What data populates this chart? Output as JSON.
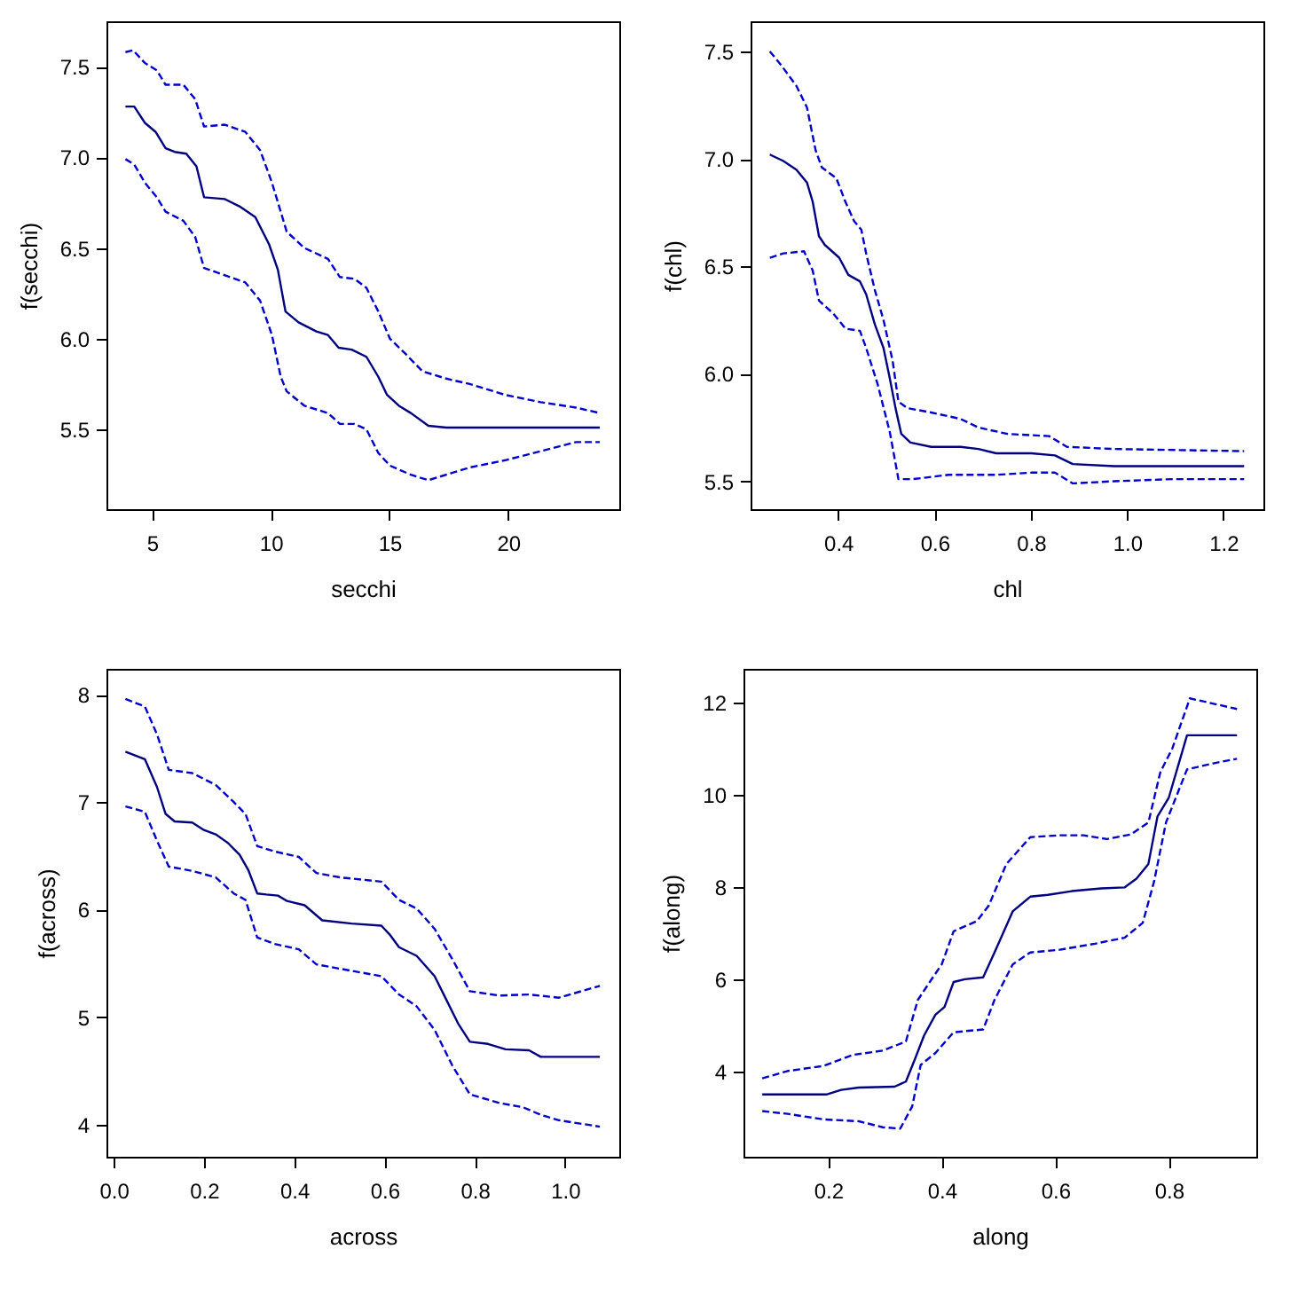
{
  "chart_data": [
    {
      "type": "line",
      "xlabel": "secchi",
      "ylabel": "f(secchi)",
      "xlim": [
        3.08,
        24.68
      ],
      "ylim": [
        5.06,
        7.75
      ],
      "xticks": [
        5,
        10,
        15,
        20
      ],
      "yticks": [
        {
          "value": 5.5,
          "label": "5.5"
        },
        {
          "value": 6,
          "label": "6.0"
        },
        {
          "value": 6.5,
          "label": "6.5"
        },
        {
          "value": 7,
          "label": "7.0"
        },
        {
          "value": 7.5,
          "label": "7.5"
        }
      ],
      "series": [
        {
          "color": "#000080",
          "line_style": "solid",
          "x": [
            3.88,
            4.25,
            4.7,
            5.15,
            5.57,
            5.95,
            6.44,
            6.87,
            7.19,
            8.06,
            8.68,
            9.35,
            9.93,
            10.3,
            10.62,
            11.17,
            11.92,
            12.41,
            12.86,
            13.41,
            14.03,
            14.53,
            14.9,
            15.4,
            15.9,
            16.64,
            17.39,
            23.86
          ],
          "values": [
            7.28,
            7.28,
            7.19,
            7.14,
            7.05,
            7.03,
            7.02,
            6.95,
            6.78,
            6.77,
            6.73,
            6.67,
            6.52,
            6.38,
            6.15,
            6.09,
            6.04,
            6.02,
            5.95,
            5.94,
            5.9,
            5.79,
            5.69,
            5.63,
            5.59,
            5.52,
            5.51,
            5.51
          ]
        },
        {
          "color": "#0000cc",
          "line_style": "dashed",
          "x": [
            3.88,
            4.2,
            4.7,
            5.2,
            5.57,
            6.32,
            6.82,
            7.19,
            8.06,
            8.93,
            9.55,
            10.05,
            10.42,
            10.67,
            11.42,
            12.41,
            12.91,
            13.53,
            14.03,
            14.53,
            15.02,
            15.65,
            16.39,
            17.39,
            18.38,
            19.88,
            21.37,
            22.86,
            23.86
          ],
          "values": [
            7.58,
            7.59,
            7.52,
            7.48,
            7.4,
            7.4,
            7.32,
            7.17,
            7.18,
            7.14,
            7.04,
            6.86,
            6.7,
            6.59,
            6.5,
            6.44,
            6.34,
            6.33,
            6.28,
            6.15,
            6.0,
            5.92,
            5.82,
            5.78,
            5.75,
            5.69,
            5.65,
            5.62,
            5.59
          ]
        },
        {
          "color": "#0000cc",
          "line_style": "dashed",
          "x": [
            3.88,
            4.25,
            4.7,
            5.2,
            5.57,
            6.32,
            6.82,
            7.19,
            8.06,
            8.93,
            9.55,
            10.05,
            10.42,
            10.67,
            11.42,
            12.41,
            12.91,
            13.53,
            14.03,
            14.53,
            15.02,
            15.9,
            16.64,
            17.39,
            18.38,
            19.88,
            21.37,
            22.86,
            23.86
          ],
          "values": [
            6.99,
            6.96,
            6.86,
            6.78,
            6.7,
            6.65,
            6.56,
            6.39,
            6.35,
            6.31,
            6.21,
            6.02,
            5.79,
            5.71,
            5.63,
            5.59,
            5.53,
            5.53,
            5.5,
            5.37,
            5.3,
            5.25,
            5.22,
            5.25,
            5.29,
            5.33,
            5.38,
            5.43,
            5.43
          ]
        }
      ]
    },
    {
      "type": "line",
      "xlabel": "chl",
      "ylabel": "f(chl)",
      "xlim": [
        0.218,
        1.283
      ],
      "ylim": [
        5.37,
        7.64
      ],
      "xticks": [
        {
          "value": 0.4,
          "label": "0.4"
        },
        {
          "value": 0.6,
          "label": "0.6"
        },
        {
          "value": 0.8,
          "label": "0.8"
        },
        {
          "value": 1,
          "label": "1.0"
        },
        {
          "value": 1.2,
          "label": "1.2"
        }
      ],
      "yticks": [
        {
          "value": 5.5,
          "label": "5.5"
        },
        {
          "value": 6,
          "label": "6.0"
        },
        {
          "value": 6.5,
          "label": "6.5"
        },
        {
          "value": 7,
          "label": "7.0"
        },
        {
          "value": 7.5,
          "label": "7.5"
        }
      ],
      "series": [
        {
          "color": "#000080",
          "line_style": "solid",
          "x": [
            0.258,
            0.286,
            0.313,
            0.335,
            0.347,
            0.36,
            0.372,
            0.402,
            0.421,
            0.445,
            0.458,
            0.476,
            0.494,
            0.507,
            0.519,
            0.531,
            0.55,
            0.593,
            0.654,
            0.691,
            0.728,
            0.801,
            0.85,
            0.887,
            0.973,
            1.243
          ],
          "values": [
            7.02,
            6.99,
            6.95,
            6.89,
            6.8,
            6.64,
            6.6,
            6.54,
            6.46,
            6.43,
            6.37,
            6.23,
            6.12,
            5.98,
            5.84,
            5.72,
            5.68,
            5.66,
            5.66,
            5.65,
            5.63,
            5.63,
            5.62,
            5.58,
            5.57,
            5.57
          ]
        },
        {
          "color": "#0000cc",
          "line_style": "dashed",
          "x": [
            0.258,
            0.28,
            0.313,
            0.335,
            0.353,
            0.366,
            0.396,
            0.415,
            0.433,
            0.448,
            0.458,
            0.476,
            0.494,
            0.513,
            0.525,
            0.544,
            0.593,
            0.654,
            0.691,
            0.752,
            0.838,
            0.875,
            0.973,
            1.243
          ],
          "values": [
            7.5,
            7.44,
            7.34,
            7.24,
            7.04,
            6.96,
            6.91,
            6.8,
            6.71,
            6.67,
            6.56,
            6.39,
            6.25,
            6.06,
            5.87,
            5.84,
            5.82,
            5.79,
            5.75,
            5.72,
            5.71,
            5.66,
            5.65,
            5.64
          ]
        },
        {
          "color": "#0000cc",
          "line_style": "dashed",
          "x": [
            0.258,
            0.286,
            0.329,
            0.347,
            0.36,
            0.39,
            0.415,
            0.445,
            0.458,
            0.482,
            0.507,
            0.525,
            0.556,
            0.629,
            0.728,
            0.801,
            0.85,
            0.887,
            0.973,
            1.096,
            1.243
          ],
          "values": [
            6.54,
            6.56,
            6.57,
            6.48,
            6.34,
            6.28,
            6.21,
            6.2,
            6.12,
            5.95,
            5.73,
            5.51,
            5.51,
            5.53,
            5.53,
            5.54,
            5.54,
            5.49,
            5.5,
            5.51,
            5.51
          ]
        }
      ]
    },
    {
      "type": "line",
      "xlabel": "across",
      "ylabel": "f(across)",
      "xlim": [
        -0.016,
        1.12
      ],
      "ylim": [
        3.7,
        8.24
      ],
      "xticks": [
        {
          "value": 0,
          "label": "0.0"
        },
        {
          "value": 0.2,
          "label": "0.2"
        },
        {
          "value": 0.4,
          "label": "0.4"
        },
        {
          "value": 0.6,
          "label": "0.6"
        },
        {
          "value": 0.8,
          "label": "0.8"
        },
        {
          "value": 1,
          "label": "1.0"
        }
      ],
      "yticks": [
        4,
        5,
        6,
        7,
        8
      ],
      "series": [
        {
          "color": "#000080",
          "line_style": "solid",
          "x": [
            0.026,
            0.069,
            0.096,
            0.115,
            0.135,
            0.174,
            0.2,
            0.226,
            0.253,
            0.279,
            0.298,
            0.318,
            0.338,
            0.364,
            0.384,
            0.423,
            0.462,
            0.527,
            0.593,
            0.613,
            0.632,
            0.671,
            0.711,
            0.737,
            0.763,
            0.789,
            0.829,
            0.868,
            0.92,
            0.946,
            1.077
          ],
          "values": [
            7.47,
            7.4,
            7.14,
            6.89,
            6.82,
            6.81,
            6.74,
            6.7,
            6.62,
            6.51,
            6.37,
            6.15,
            6.14,
            6.13,
            6.08,
            6.04,
            5.9,
            5.87,
            5.85,
            5.76,
            5.65,
            5.57,
            5.38,
            5.16,
            4.94,
            4.77,
            4.75,
            4.7,
            4.69,
            4.63,
            4.63
          ]
        },
        {
          "color": "#0000cc",
          "line_style": "dashed",
          "x": [
            0.026,
            0.069,
            0.096,
            0.122,
            0.174,
            0.226,
            0.266,
            0.292,
            0.318,
            0.357,
            0.41,
            0.449,
            0.501,
            0.593,
            0.632,
            0.671,
            0.711,
            0.75,
            0.789,
            0.855,
            0.92,
            0.986,
            1.077
          ],
          "values": [
            7.96,
            7.89,
            7.63,
            7.3,
            7.27,
            7.16,
            7.0,
            6.89,
            6.59,
            6.54,
            6.49,
            6.34,
            6.3,
            6.26,
            6.09,
            6.01,
            5.82,
            5.54,
            5.24,
            5.2,
            5.21,
            5.18,
            5.29
          ]
        },
        {
          "color": "#0000cc",
          "line_style": "dashed",
          "x": [
            0.026,
            0.069,
            0.096,
            0.122,
            0.174,
            0.226,
            0.266,
            0.292,
            0.318,
            0.357,
            0.41,
            0.449,
            0.501,
            0.593,
            0.632,
            0.671,
            0.711,
            0.75,
            0.789,
            0.855,
            0.907,
            0.946,
            0.986,
            1.077
          ],
          "values": [
            6.96,
            6.91,
            6.64,
            6.4,
            6.36,
            6.3,
            6.15,
            6.09,
            5.74,
            5.68,
            5.63,
            5.49,
            5.45,
            5.38,
            5.21,
            5.1,
            4.88,
            4.55,
            4.28,
            4.2,
            4.16,
            4.09,
            4.04,
            3.98
          ]
        }
      ]
    },
    {
      "type": "line",
      "xlabel": "along",
      "ylabel": "f(along)",
      "xlim": [
        0.051,
        0.954
      ],
      "ylim": [
        2.15,
        12.73
      ],
      "xticks": [
        0.2,
        0.4,
        0.6,
        0.8
      ],
      "yticks": [
        4,
        6,
        8,
        10,
        12
      ],
      "series": [
        {
          "color": "#000080",
          "line_style": "solid",
          "x": [
            0.084,
            0.197,
            0.223,
            0.254,
            0.317,
            0.337,
            0.353,
            0.369,
            0.389,
            0.405,
            0.421,
            0.441,
            0.473,
            0.493,
            0.525,
            0.556,
            0.587,
            0.629,
            0.681,
            0.722,
            0.743,
            0.764,
            0.78,
            0.8,
            0.832,
            0.92
          ],
          "values": [
            3.5,
            3.5,
            3.6,
            3.65,
            3.67,
            3.78,
            4.27,
            4.78,
            5.23,
            5.4,
            5.94,
            6.0,
            6.04,
            6.58,
            7.47,
            7.79,
            7.83,
            7.91,
            7.97,
            7.99,
            8.18,
            8.5,
            9.53,
            9.94,
            11.29,
            11.29
          ]
        },
        {
          "color": "#0000cc",
          "line_style": "dashed",
          "x": [
            0.084,
            0.129,
            0.192,
            0.244,
            0.296,
            0.337,
            0.358,
            0.379,
            0.4,
            0.421,
            0.462,
            0.483,
            0.514,
            0.556,
            0.608,
            0.65,
            0.691,
            0.733,
            0.764,
            0.785,
            0.806,
            0.837,
            0.92
          ],
          "values": [
            3.85,
            4.01,
            4.12,
            4.36,
            4.45,
            4.65,
            5.55,
            5.94,
            6.32,
            7.04,
            7.26,
            7.6,
            8.5,
            9.08,
            9.12,
            9.12,
            9.04,
            9.14,
            9.4,
            10.49,
            11.0,
            12.09,
            11.86
          ]
        },
        {
          "color": "#0000cc",
          "line_style": "dashed",
          "x": [
            0.084,
            0.129,
            0.192,
            0.254,
            0.296,
            0.327,
            0.348,
            0.363,
            0.389,
            0.421,
            0.473,
            0.493,
            0.525,
            0.556,
            0.608,
            0.67,
            0.722,
            0.754,
            0.774,
            0.795,
            0.832,
            0.878,
            0.92
          ],
          "values": [
            3.14,
            3.08,
            2.96,
            2.92,
            2.79,
            2.76,
            3.24,
            4.14,
            4.4,
            4.85,
            4.91,
            5.55,
            6.32,
            6.58,
            6.64,
            6.77,
            6.9,
            7.22,
            8.12,
            9.4,
            10.55,
            10.68,
            10.78
          ]
        }
      ]
    }
  ]
}
